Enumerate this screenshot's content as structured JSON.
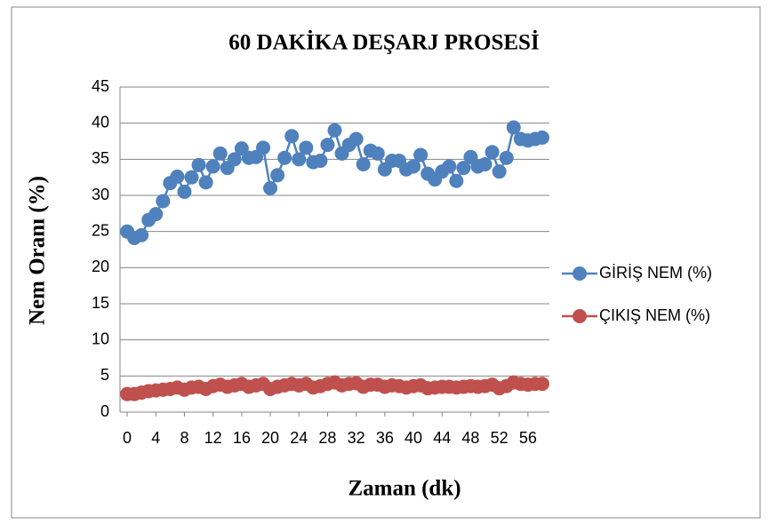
{
  "chart_data": {
    "type": "line",
    "title": "60 DAKİKA DEŞARJ PROSESİ",
    "x_label": "Zaman (dk)",
    "y_label": "Nem Oranı (%)",
    "x": [
      0,
      1,
      2,
      3,
      4,
      5,
      6,
      7,
      8,
      9,
      10,
      11,
      12,
      13,
      14,
      15,
      16,
      17,
      18,
      19,
      20,
      21,
      22,
      23,
      24,
      25,
      26,
      27,
      28,
      29,
      30,
      31,
      32,
      33,
      34,
      35,
      36,
      37,
      38,
      39,
      40,
      41,
      42,
      43,
      44,
      45,
      46,
      47,
      48,
      49,
      50,
      51,
      52,
      53,
      54,
      55,
      56,
      57,
      58
    ],
    "series": [
      {
        "name": "GİRİŞ NEM (%)",
        "color": "#4f81bd",
        "values": [
          25,
          24.1,
          24.5,
          26.6,
          27.4,
          29.2,
          31.7,
          32.6,
          30.5,
          32.5,
          34.2,
          31.8,
          34,
          35.8,
          33.8,
          35,
          36.5,
          35.2,
          35.3,
          36.6,
          31,
          32.8,
          35.2,
          38.2,
          35,
          36.6,
          34.6,
          34.8,
          37,
          39,
          35.8,
          37,
          37.8,
          34.3,
          36.2,
          35.8,
          33.6,
          34.8,
          34.8,
          33.6,
          34,
          35.6,
          33,
          32.2,
          33.3,
          34,
          32,
          33.8,
          35.3,
          34,
          34.3,
          36,
          33.3,
          35.2,
          39.4,
          37.8,
          37.6,
          37.8,
          38
        ]
      },
      {
        "name": "ÇIKIŞ NEM (%)",
        "color": "#c0504d",
        "values": [
          2.5,
          2.5,
          2.7,
          2.9,
          3.0,
          3.1,
          3.2,
          3.4,
          3.1,
          3.4,
          3.5,
          3.2,
          3.6,
          3.8,
          3.5,
          3.7,
          3.9,
          3.5,
          3.7,
          3.9,
          3.2,
          3.5,
          3.7,
          3.9,
          3.7,
          3.9,
          3.4,
          3.6,
          3.9,
          4.1,
          3.7,
          3.9,
          4.0,
          3.5,
          3.8,
          3.8,
          3.5,
          3.7,
          3.6,
          3.4,
          3.6,
          3.7,
          3.3,
          3.4,
          3.5,
          3.5,
          3.4,
          3.5,
          3.6,
          3.5,
          3.6,
          3.8,
          3.3,
          3.6,
          4.1,
          3.9,
          3.8,
          3.9,
          3.9
        ]
      }
    ],
    "xlim": [
      -1,
      59
    ],
    "xticks": [
      0,
      4,
      8,
      12,
      16,
      20,
      24,
      28,
      32,
      36,
      40,
      44,
      48,
      52,
      56
    ],
    "ylim": [
      0,
      45
    ],
    "yticks": [
      0,
      5,
      10,
      15,
      20,
      25,
      30,
      35,
      40,
      45
    ],
    "grid": true,
    "legend": "right"
  }
}
